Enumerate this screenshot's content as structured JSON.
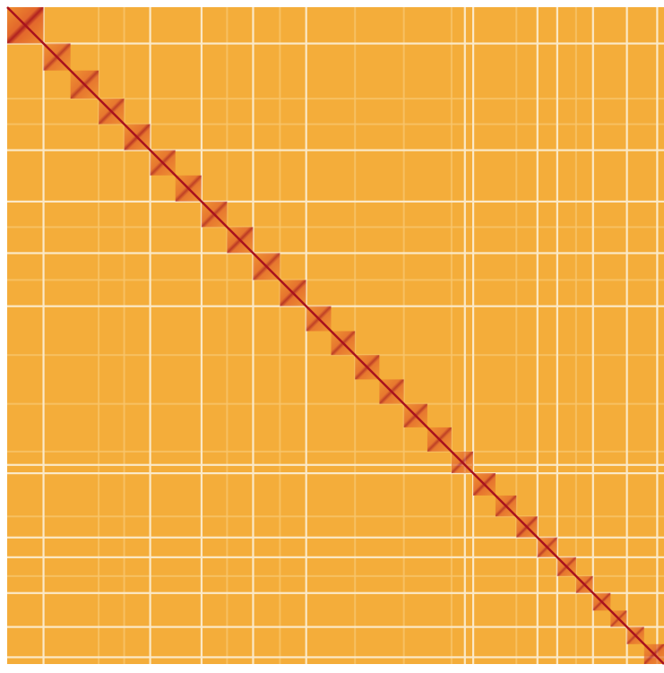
{
  "chart_data": {
    "type": "heatmap",
    "title": "",
    "xlabel": "",
    "ylabel": "",
    "description_of_encoding": "",
    "colors": {
      "background": "#f4ad3a",
      "background_light": "#f7c46c",
      "gap": "#fbe9c7",
      "block_light": "#ee8a2e",
      "block_mid": "#e1602a",
      "diagonal": "#a8121d"
    },
    "block_boundaries": [
      0,
      0.0552,
      0.0964,
      0.1393,
      0.1781,
      0.2176,
      0.2561,
      0.2958,
      0.3348,
      0.3743,
      0.4153,
      0.4551,
      0.4932,
      0.5296,
      0.5667,
      0.6039,
      0.6397,
      0.6765,
      0.7094,
      0.7434,
      0.7753,
      0.8072,
      0.8373,
      0.8661,
      0.8918,
      0.9186,
      0.9434,
      0.9697,
      1.0
    ],
    "block_intensity": [
      0.9,
      0.7,
      0.7,
      0.7,
      0.75,
      0.7,
      0.7,
      0.7,
      0.75,
      0.7,
      0.75,
      0.7,
      0.7,
      0.7,
      0.7,
      0.7,
      0.7,
      0.7,
      0.75,
      0.7,
      0.75,
      0.7,
      0.7,
      0.7,
      0.75,
      0.7,
      0.7,
      0.75
    ],
    "gap_lines": [
      0.0552,
      0.2176,
      0.2958,
      0.3743,
      0.4551,
      0.6967,
      0.7094,
      0.8072,
      0.8373,
      0.8918,
      0.9434,
      0.9895
    ],
    "faint_lines": [
      0.1393,
      0.1781,
      0.3348,
      0.4153,
      0.5296,
      0.6039,
      0.6765,
      0.7753,
      0.8661
    ]
  }
}
